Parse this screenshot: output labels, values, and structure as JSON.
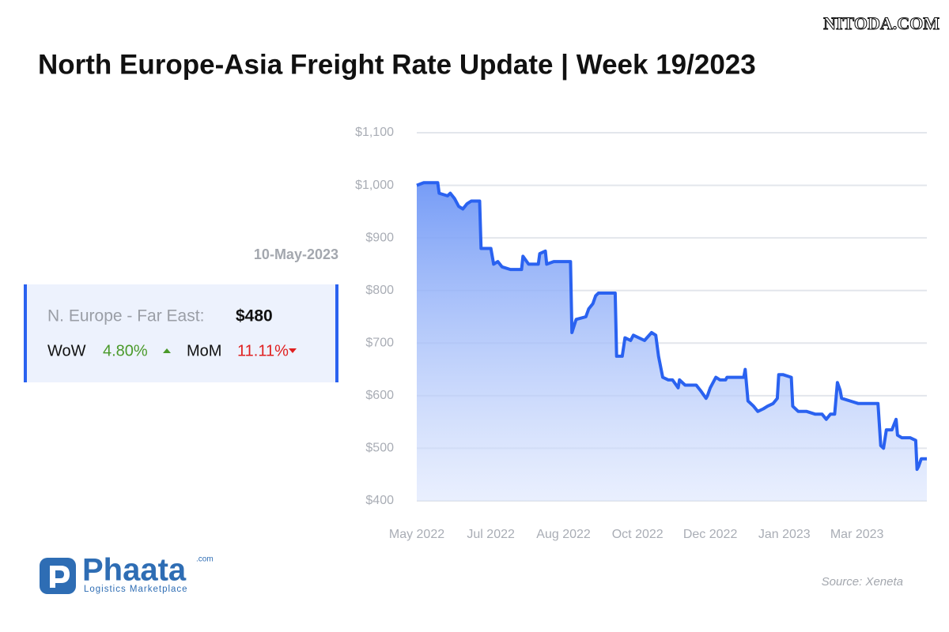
{
  "watermark": "NITODA.COM",
  "card": {
    "date": "10-May-2023",
    "route": "N. Europe - Far East:",
    "rate": "$480",
    "wow_label": "WoW",
    "wow_value": "4.80%",
    "mom_label": "MoM",
    "mom_value": "11.11%"
  },
  "logo": {
    "name": "Phaata",
    "suffix": ".com",
    "tagline": "Logistics Marketplace"
  },
  "source": "Source: Xeneta",
  "chart_data": {
    "type": "line",
    "title": "North Europe-Asia Freight Rate Update | Week 19/2023",
    "color": "#2a62f0",
    "area": true,
    "grid": true,
    "xlim": [
      0,
      365
    ],
    "xticks": [
      {
        "value": 0,
        "label": "May 2022"
      },
      {
        "value": 53,
        "label": "Jul 2022"
      },
      {
        "value": 105,
        "label": "Aug 2022"
      },
      {
        "value": 158,
        "label": "Oct 2022"
      },
      {
        "value": 210,
        "label": "Dec 2022"
      },
      {
        "value": 263,
        "label": "Jan 2023"
      },
      {
        "value": 315,
        "label": "Mar 2023"
      }
    ],
    "ylim": [
      400,
      1100
    ],
    "yticks": [
      {
        "value": 400,
        "label": "$400"
      },
      {
        "value": 500,
        "label": "$500"
      },
      {
        "value": 600,
        "label": "$600"
      },
      {
        "value": 700,
        "label": "$700"
      },
      {
        "value": 800,
        "label": "$800"
      },
      {
        "value": 900,
        "label": "$900"
      },
      {
        "value": 1000,
        "label": "$1,000"
      },
      {
        "value": 1100,
        "label": "$1,100"
      }
    ],
    "x": [
      0,
      5,
      10,
      15,
      16,
      22,
      24,
      27,
      30,
      33,
      36,
      39,
      45,
      46,
      53,
      55,
      58,
      61,
      67,
      75,
      76,
      80,
      87,
      88,
      92,
      93,
      98,
      110,
      111,
      114,
      121,
      123,
      126,
      128,
      130,
      132,
      136,
      142,
      143,
      147,
      149,
      153,
      155,
      163,
      168,
      171,
      173,
      176,
      180,
      183,
      187,
      188,
      192,
      197,
      200,
      203,
      207,
      208,
      210,
      214,
      217,
      221,
      222,
      228,
      234,
      235,
      237,
      241,
      244,
      248,
      251,
      255,
      258,
      259,
      262,
      268,
      269,
      273,
      279,
      285,
      290,
      293,
      296,
      299,
      301,
      303,
      304,
      310,
      316,
      324,
      330,
      332,
      334,
      336,
      340,
      343,
      344,
      347,
      353,
      357,
      358,
      359,
      361,
      365
    ],
    "values": [
      1000,
      1005,
      1005,
      1005,
      985,
      980,
      985,
      975,
      960,
      955,
      965,
      970,
      970,
      880,
      880,
      850,
      855,
      845,
      840,
      840,
      865,
      850,
      850,
      870,
      875,
      850,
      855,
      855,
      720,
      745,
      750,
      765,
      775,
      790,
      795,
      795,
      795,
      795,
      675,
      675,
      710,
      705,
      715,
      705,
      720,
      715,
      675,
      635,
      630,
      630,
      615,
      630,
      620,
      620,
      620,
      610,
      595,
      600,
      615,
      635,
      630,
      630,
      635,
      635,
      635,
      650,
      590,
      580,
      570,
      575,
      580,
      585,
      595,
      640,
      640,
      635,
      580,
      570,
      570,
      565,
      565,
      555,
      565,
      565,
      625,
      610,
      595,
      590,
      585,
      585,
      585,
      505,
      500,
      535,
      535,
      555,
      525,
      520,
      520,
      515,
      460,
      465,
      480,
      480
    ]
  }
}
